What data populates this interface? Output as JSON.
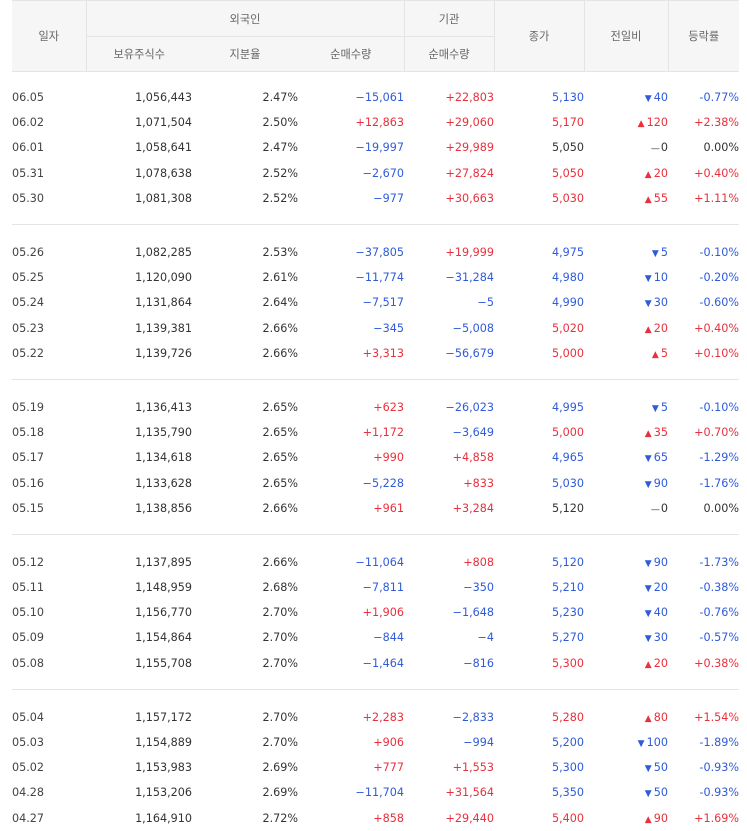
{
  "header": {
    "date": "일자",
    "foreign": "외국인",
    "institution": "기관",
    "holdings": "보유주식수",
    "share": "지분율",
    "foreign_net": "순매수량",
    "inst_net": "순매수량",
    "close": "종가",
    "change": "전일비",
    "rate": "등락률"
  },
  "colors": {
    "up": "#e8313d",
    "down": "#2f5bd9"
  },
  "icons": {
    "up": "up-triangle-icon",
    "down": "down-triangle-icon",
    "flat": "dash-icon"
  },
  "groups": [
    [
      {
        "date": "06.05",
        "holdings": "1,056,443",
        "share": "2.47%",
        "foreign_net": "−15,061",
        "inst_net": "+22,803",
        "close": "5,130",
        "change": "40",
        "dir": "down",
        "rate": "-0.77%"
      },
      {
        "date": "06.02",
        "holdings": "1,071,504",
        "share": "2.50%",
        "foreign_net": "+12,863",
        "inst_net": "+29,060",
        "close": "5,170",
        "change": "120",
        "dir": "up",
        "rate": "+2.38%"
      },
      {
        "date": "06.01",
        "holdings": "1,058,641",
        "share": "2.47%",
        "foreign_net": "−19,997",
        "inst_net": "+29,989",
        "close": "5,050",
        "change": "0",
        "dir": "flat",
        "rate": "0.00%"
      },
      {
        "date": "05.31",
        "holdings": "1,078,638",
        "share": "2.52%",
        "foreign_net": "−2,670",
        "inst_net": "+27,824",
        "close": "5,050",
        "change": "20",
        "dir": "up",
        "rate": "+0.40%"
      },
      {
        "date": "05.30",
        "holdings": "1,081,308",
        "share": "2.52%",
        "foreign_net": "−977",
        "inst_net": "+30,663",
        "close": "5,030",
        "change": "55",
        "dir": "up",
        "rate": "+1.11%"
      }
    ],
    [
      {
        "date": "05.26",
        "holdings": "1,082,285",
        "share": "2.53%",
        "foreign_net": "−37,805",
        "inst_net": "+19,999",
        "close": "4,975",
        "change": "5",
        "dir": "down",
        "rate": "-0.10%"
      },
      {
        "date": "05.25",
        "holdings": "1,120,090",
        "share": "2.61%",
        "foreign_net": "−11,774",
        "inst_net": "−31,284",
        "close": "4,980",
        "change": "10",
        "dir": "down",
        "rate": "-0.20%"
      },
      {
        "date": "05.24",
        "holdings": "1,131,864",
        "share": "2.64%",
        "foreign_net": "−7,517",
        "inst_net": "−5",
        "close": "4,990",
        "change": "30",
        "dir": "down",
        "rate": "-0.60%"
      },
      {
        "date": "05.23",
        "holdings": "1,139,381",
        "share": "2.66%",
        "foreign_net": "−345",
        "inst_net": "−5,008",
        "close": "5,020",
        "change": "20",
        "dir": "up",
        "rate": "+0.40%"
      },
      {
        "date": "05.22",
        "holdings": "1,139,726",
        "share": "2.66%",
        "foreign_net": "+3,313",
        "inst_net": "−56,679",
        "close": "5,000",
        "change": "5",
        "dir": "up",
        "rate": "+0.10%"
      }
    ],
    [
      {
        "date": "05.19",
        "holdings": "1,136,413",
        "share": "2.65%",
        "foreign_net": "+623",
        "inst_net": "−26,023",
        "close": "4,995",
        "change": "5",
        "dir": "down",
        "rate": "-0.10%"
      },
      {
        "date": "05.18",
        "holdings": "1,135,790",
        "share": "2.65%",
        "foreign_net": "+1,172",
        "inst_net": "−3,649",
        "close": "5,000",
        "change": "35",
        "dir": "up",
        "rate": "+0.70%"
      },
      {
        "date": "05.17",
        "holdings": "1,134,618",
        "share": "2.65%",
        "foreign_net": "+990",
        "inst_net": "+4,858",
        "close": "4,965",
        "change": "65",
        "dir": "down",
        "rate": "-1.29%"
      },
      {
        "date": "05.16",
        "holdings": "1,133,628",
        "share": "2.65%",
        "foreign_net": "−5,228",
        "inst_net": "+833",
        "close": "5,030",
        "change": "90",
        "dir": "down",
        "rate": "-1.76%"
      },
      {
        "date": "05.15",
        "holdings": "1,138,856",
        "share": "2.66%",
        "foreign_net": "+961",
        "inst_net": "+3,284",
        "close": "5,120",
        "change": "0",
        "dir": "flat",
        "rate": "0.00%"
      }
    ],
    [
      {
        "date": "05.12",
        "holdings": "1,137,895",
        "share": "2.66%",
        "foreign_net": "−11,064",
        "inst_net": "+808",
        "close": "5,120",
        "change": "90",
        "dir": "down",
        "rate": "-1.73%"
      },
      {
        "date": "05.11",
        "holdings": "1,148,959",
        "share": "2.68%",
        "foreign_net": "−7,811",
        "inst_net": "−350",
        "close": "5,210",
        "change": "20",
        "dir": "down",
        "rate": "-0.38%"
      },
      {
        "date": "05.10",
        "holdings": "1,156,770",
        "share": "2.70%",
        "foreign_net": "+1,906",
        "inst_net": "−1,648",
        "close": "5,230",
        "change": "40",
        "dir": "down",
        "rate": "-0.76%"
      },
      {
        "date": "05.09",
        "holdings": "1,154,864",
        "share": "2.70%",
        "foreign_net": "−844",
        "inst_net": "−4",
        "close": "5,270",
        "change": "30",
        "dir": "down",
        "rate": "-0.57%"
      },
      {
        "date": "05.08",
        "holdings": "1,155,708",
        "share": "2.70%",
        "foreign_net": "−1,464",
        "inst_net": "−816",
        "close": "5,300",
        "change": "20",
        "dir": "up",
        "rate": "+0.38%"
      }
    ],
    [
      {
        "date": "05.04",
        "holdings": "1,157,172",
        "share": "2.70%",
        "foreign_net": "+2,283",
        "inst_net": "−2,833",
        "close": "5,280",
        "change": "80",
        "dir": "up",
        "rate": "+1.54%"
      },
      {
        "date": "05.03",
        "holdings": "1,154,889",
        "share": "2.70%",
        "foreign_net": "+906",
        "inst_net": "−994",
        "close": "5,200",
        "change": "100",
        "dir": "down",
        "rate": "-1.89%"
      },
      {
        "date": "05.02",
        "holdings": "1,153,983",
        "share": "2.69%",
        "foreign_net": "+777",
        "inst_net": "+1,553",
        "close": "5,300",
        "change": "50",
        "dir": "down",
        "rate": "-0.93%"
      },
      {
        "date": "04.28",
        "holdings": "1,153,206",
        "share": "2.69%",
        "foreign_net": "−11,704",
        "inst_net": "+31,564",
        "close": "5,350",
        "change": "50",
        "dir": "down",
        "rate": "-0.93%"
      },
      {
        "date": "04.27",
        "holdings": "1,164,910",
        "share": "2.72%",
        "foreign_net": "+858",
        "inst_net": "+29,440",
        "close": "5,400",
        "change": "90",
        "dir": "up",
        "rate": "+1.69%"
      }
    ]
  ]
}
